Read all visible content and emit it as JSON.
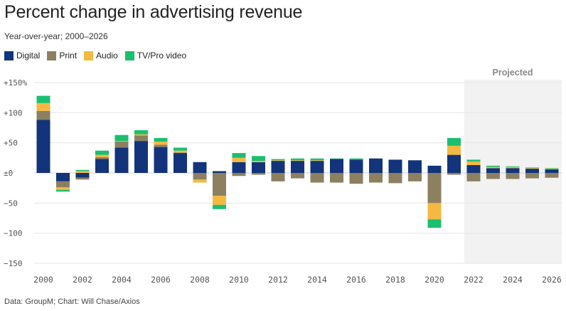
{
  "title": "Percent change in advertising revenue",
  "subtitle": "Year-over-year; 2000–2026",
  "source": "Data: GroupM; Chart: Will Chase/Axios",
  "chart_data": {
    "type": "bar",
    "stacked": true,
    "title": "Percent change in advertising revenue",
    "subtitle": "Year-over-year; 2000–2026",
    "xlabel": "",
    "ylabel": "",
    "ylim": [
      -150,
      150
    ],
    "y_ticks": [
      150,
      100,
      50,
      0,
      -50,
      -100,
      -150
    ],
    "y_tick_labels": [
      "+150%",
      "+100",
      "+50",
      "±0",
      "−50",
      "−100",
      "−150"
    ],
    "x_tick_labels": [
      "2000",
      "2002",
      "2004",
      "2006",
      "2008",
      "2010",
      "2012",
      "2014",
      "2016",
      "2018",
      "2020",
      "2022",
      "2024",
      "2026"
    ],
    "grid": true,
    "legend_position": "top-left",
    "projected_label": "Projected",
    "projected_from": 2022,
    "categories": [
      "2000",
      "2001",
      "2002",
      "2003",
      "2004",
      "2005",
      "2006",
      "2007",
      "2008",
      "2009",
      "2010",
      "2011",
      "2012",
      "2013",
      "2014",
      "2015",
      "2016",
      "2017",
      "2018",
      "2019",
      "2020",
      "2021",
      "2022",
      "2023",
      "2024",
      "2025",
      "2026"
    ],
    "series": [
      {
        "name": "Digital",
        "color": "#13347a",
        "values": [
          88,
          -14,
          -8,
          23,
          42,
          53,
          43,
          33,
          18,
          3,
          18,
          18,
          20,
          20,
          20,
          23,
          22,
          24,
          22,
          21,
          12,
          30,
          13,
          8,
          8,
          7,
          6
        ]
      },
      {
        "name": "Print",
        "color": "#8c8061",
        "values": [
          15,
          -10,
          -3,
          3,
          10,
          9,
          4,
          1,
          -11,
          -38,
          -5,
          -3,
          -14,
          -9,
          -16,
          -16,
          -18,
          -16,
          -17,
          -14,
          -50,
          -3,
          -14,
          -10,
          -10,
          -9,
          -8
        ]
      },
      {
        "name": "Audio",
        "color": "#f5b841",
        "values": [
          13,
          -4,
          3,
          4,
          1,
          2,
          5,
          3,
          -5,
          -15,
          7,
          2,
          1,
          1,
          1,
          0,
          0,
          0,
          0,
          0,
          -27,
          15,
          6,
          2,
          2,
          1,
          1
        ]
      },
      {
        "name": "TV/Pro video",
        "color": "#1bbf70",
        "values": [
          12,
          -3,
          2,
          7,
          10,
          7,
          6,
          5,
          0,
          -7,
          8,
          8,
          2,
          3,
          3,
          1,
          2,
          0,
          0,
          0,
          -14,
          13,
          3,
          2,
          1,
          1,
          1
        ]
      }
    ]
  }
}
